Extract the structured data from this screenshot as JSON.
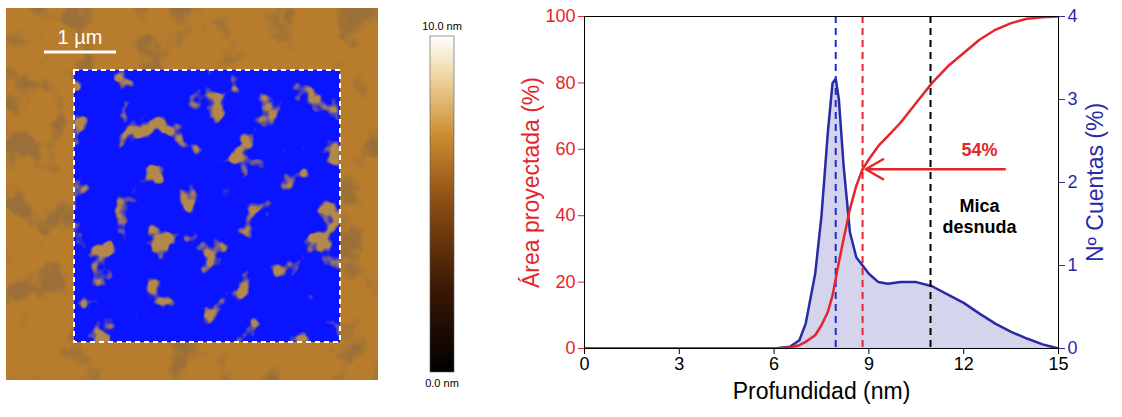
{
  "image": {
    "scale_bar": "1 µm",
    "colorbar": {
      "range": [
        0,
        10
      ],
      "ticks": [
        {
          "value": 10,
          "label": "10.0 nm"
        },
        {
          "value": 0,
          "label": "0.0 nm"
        }
      ]
    }
  },
  "chart_data": {
    "type": "line",
    "xlabel": "Profundidad (nm)",
    "ylabel": "Área proyectada (%)",
    "y2label": "Nº Cuentas (%)",
    "x": [
      0,
      1,
      2,
      3,
      4,
      5,
      6,
      6.5,
      6.8,
      7,
      7.3,
      7.5,
      7.7,
      7.85,
      7.95,
      8.05,
      8.2,
      8.4,
      8.6,
      8.8,
      9,
      9.3,
      9.6,
      10,
      10.5,
      11,
      11.5,
      12,
      12.5,
      13,
      13.5,
      14,
      14.5,
      15
    ],
    "series": [
      {
        "type": "line",
        "color": "#e3262b",
        "values": [
          0,
          0,
          0,
          0,
          0,
          0,
          0,
          0.3,
          1,
          2,
          4,
          7,
          11,
          16,
          21,
          26,
          33,
          42,
          49,
          54,
          57,
          61,
          64,
          68,
          74,
          80,
          85,
          89,
          93,
          96,
          98,
          99.3,
          99.8,
          100
        ]
      },
      {
        "type": "area",
        "color": "#2a2aa6",
        "axis": "y2",
        "values": [
          0,
          0,
          0,
          0,
          0,
          0,
          0,
          0.02,
          0.1,
          0.3,
          0.9,
          1.6,
          2.6,
          3.2,
          3.25,
          3.0,
          2.2,
          1.4,
          1.1,
          1.0,
          0.9,
          0.8,
          0.78,
          0.8,
          0.8,
          0.75,
          0.65,
          0.55,
          0.42,
          0.3,
          0.2,
          0.12,
          0.05,
          0
        ]
      }
    ],
    "xlim": [
      0,
      15
    ],
    "xticks": [
      0,
      3,
      6,
      9,
      12,
      15
    ],
    "ylim": [
      0,
      100
    ],
    "yticks": [
      0,
      20,
      40,
      60,
      80,
      100
    ],
    "y2lim": [
      0,
      4
    ],
    "y2ticks": [
      0,
      1,
      2,
      3,
      4
    ],
    "reference_lines": [
      {
        "x": 7.95,
        "color": "#1f2bd1",
        "line_style": "dashed"
      },
      {
        "x": 8.8,
        "color": "#e3262b",
        "line_style": "dashed"
      },
      {
        "x": 10.95,
        "color": "#000000",
        "line_style": "dashed"
      }
    ],
    "annotations": [
      {
        "text": "54%",
        "x": 12.5,
        "y": 60,
        "color": "#e3262b"
      },
      {
        "text": "Mica desnuda",
        "x": 12.5,
        "y": 40,
        "color": "#000000"
      }
    ],
    "arrow": {
      "x1": 13.3,
      "x2": 8.9,
      "y": 54,
      "color": "#e3262b"
    }
  }
}
